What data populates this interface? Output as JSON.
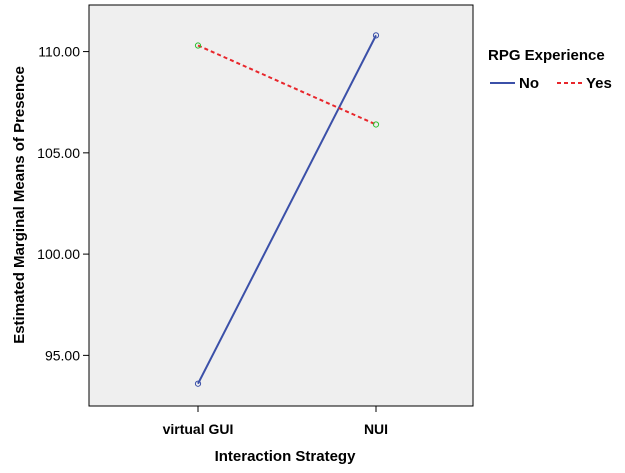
{
  "chart_data": {
    "type": "line",
    "title": "",
    "xlabel": "Interaction Strategy",
    "ylabel": "Estimated Marginal Means of Presence",
    "categories": [
      "virtual GUI",
      "NUI"
    ],
    "ylim": [
      92.5,
      112.3
    ],
    "yticks": [
      95.0,
      100.0,
      105.0,
      110.0
    ],
    "ytick_labels": [
      "95.00",
      "100.00",
      "105.00",
      "110.00"
    ],
    "grid": false,
    "legend": {
      "title": "RPG Experience",
      "placement": "right"
    },
    "series": [
      {
        "name": "No",
        "values": [
          93.6,
          110.8
        ],
        "color": "#3b50a8",
        "dash": "solid",
        "marker_color": "#3b50a8"
      },
      {
        "name": "Yes",
        "values": [
          110.3,
          106.4
        ],
        "color": "#e8262b",
        "dash": "dashed",
        "marker_color": "#2dbd2d"
      }
    ]
  },
  "colors": {
    "plot_background": "#efefef",
    "axis": "#000000"
  }
}
